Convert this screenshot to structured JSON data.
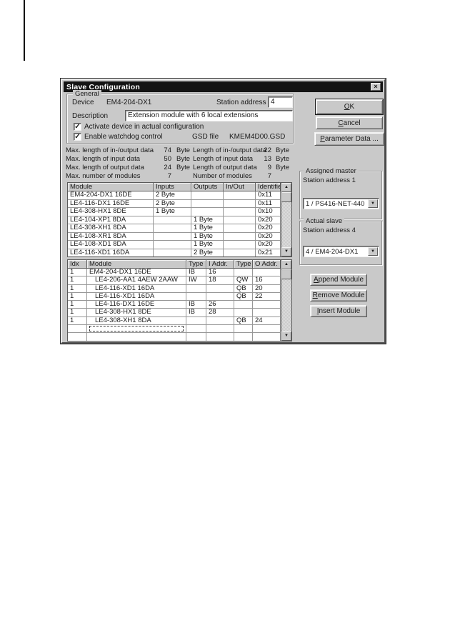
{
  "colors": {
    "titlebar": "#141414",
    "titlebar_text": "#ffffff",
    "dialog_bg": "#c9c9c9",
    "field_bg": "#ffffff",
    "text": "#1a1a1a"
  },
  "icons": {
    "close": "×",
    "up": "▲",
    "down": "▼",
    "check": "✓"
  },
  "dialog": {
    "title": "Slave Configuration",
    "general": {
      "group_label": "General",
      "device_label": "Device",
      "device_value": "EM4-204-DX1",
      "station_address_label": "Station address",
      "station_address_value": "4",
      "description_label": "Description",
      "description_value": "Extension module with 6 local extensions",
      "checkbox_activate_label": "Activate device in actual configuration",
      "checkbox_watchdog_label": "Enable watchdog control",
      "gsd_label": "GSD file",
      "gsd_value": "KMEM4D00.GSD"
    },
    "stats": {
      "rows": [
        {
          "l": "Max. length of in-/output data",
          "lv": "74",
          "lu": "Byte",
          "r": "Length of in-/output data",
          "rv": "22",
          "ru": "Byte"
        },
        {
          "l": "Max. length of input data",
          "lv": "50",
          "lu": "Byte",
          "r": "Length of input data",
          "rv": "13",
          "ru": "Byte"
        },
        {
          "l": "Max. length of output data",
          "lv": "24",
          "lu": "Byte",
          "r": "Length of output data",
          "rv": "9",
          "ru": "Byte"
        },
        {
          "l": "Max. number of modules",
          "lv": "7",
          "lu": "",
          "r": "Number of modules",
          "rv": "7",
          "ru": ""
        }
      ]
    },
    "available_modules": {
      "headers": [
        "Module",
        "Inputs",
        "Outputs",
        "In/Out",
        "Identifier"
      ],
      "rows": [
        [
          "EM4-204-DX1 16DE",
          "2 Byte",
          "",
          "",
          "0x11"
        ],
        [
          "LE4-116-DX1 16DE",
          "2 Byte",
          "",
          "",
          "0x11"
        ],
        [
          "LE4-308-HX1 8DE",
          "1 Byte",
          "",
          "",
          "0x10"
        ],
        [
          "LE4-104-XP1 8DA",
          "",
          "1 Byte",
          "",
          "0x20"
        ],
        [
          "LE4-308-XH1 8DA",
          "",
          "1 Byte",
          "",
          "0x20"
        ],
        [
          "LE4-108-XR1 8DA",
          "",
          "1 Byte",
          "",
          "0x20"
        ],
        [
          "LE4-108-XD1 8DA",
          "",
          "1 Byte",
          "",
          "0x20"
        ],
        [
          "LE4-116-XD1 16DA",
          "",
          "2 Byte",
          "",
          "0x21"
        ]
      ]
    },
    "configured_modules": {
      "headers": [
        "Idx",
        "Module",
        "Type",
        "I Addr.",
        "Type",
        "O Addr."
      ],
      "rows": [
        [
          "1",
          "EM4-204-DX1 16DE",
          "IB",
          "16",
          "",
          ""
        ],
        [
          "1",
          "LE4-206-AA1 4AEW 2AAW",
          "IW",
          "18",
          "QW",
          "16"
        ],
        [
          "1",
          "LE4-116-XD1 16DA",
          "",
          "",
          "QB",
          "20"
        ],
        [
          "1",
          "LE4-116-XD1 16DA",
          "",
          "",
          "QB",
          "22"
        ],
        [
          "1",
          "LE4-116-DX1 16DE",
          "IB",
          "26",
          "",
          ""
        ],
        [
          "1",
          "LE4-308-HX1 8DE",
          "IB",
          "28",
          "",
          ""
        ],
        [
          "1",
          "LE4-308-XH1 8DA",
          "",
          "",
          "QB",
          "24"
        ]
      ]
    },
    "assigned_master": {
      "group_label": "Assigned master",
      "station_label": "Station address 1",
      "selected": "1 / PS416-NET-440"
    },
    "actual_slave": {
      "group_label": "Actual slave",
      "station_label": "Station address 4",
      "selected": "4 / EM4-204-DX1"
    },
    "buttons": {
      "ok": "OK",
      "cancel": "Cancel",
      "parameter_data": "Parameter Data ...",
      "append": "Append Module",
      "remove": "Remove Module",
      "insert": "Insert Module"
    }
  }
}
